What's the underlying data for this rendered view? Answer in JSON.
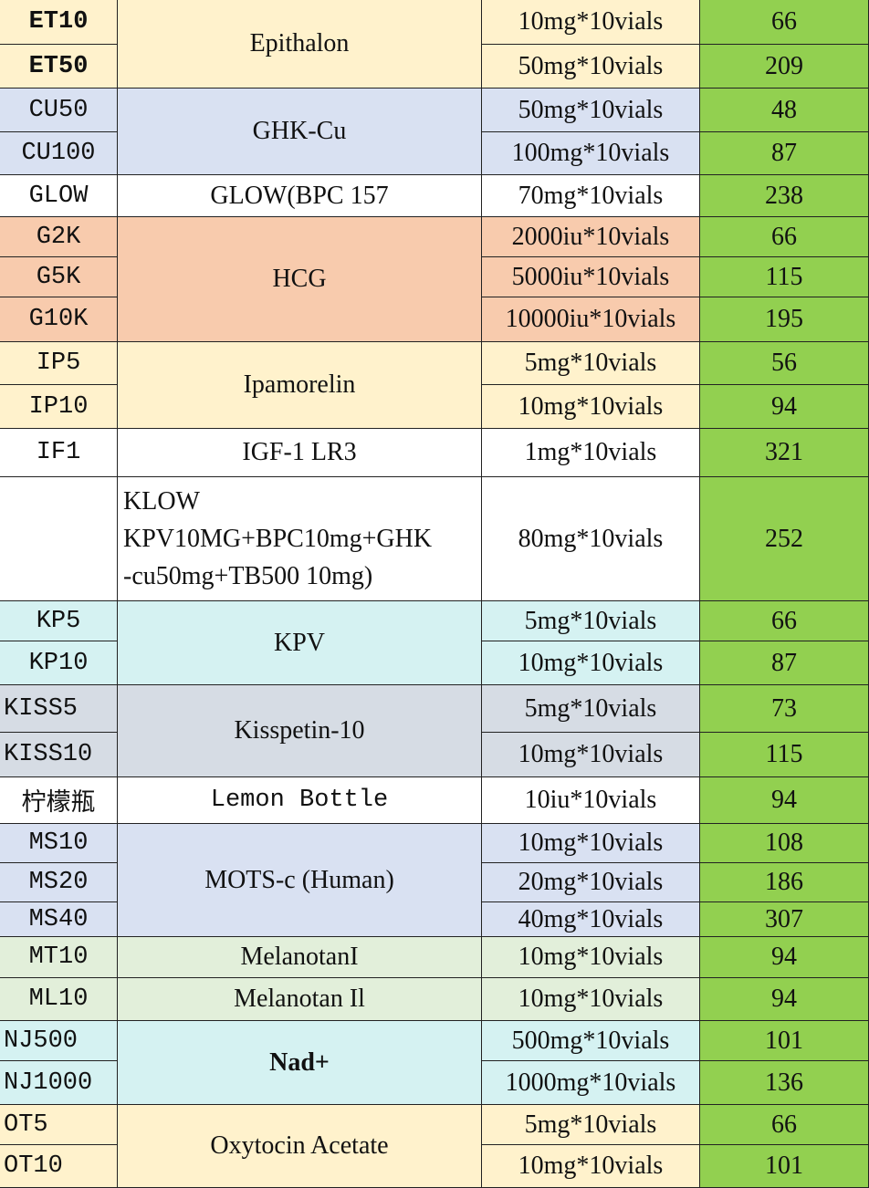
{
  "table": {
    "groups": [
      {
        "name": "Epithalon",
        "color": "#fff2cc",
        "rows": [
          {
            "code": "ET10",
            "spec": "10mg*10vials",
            "price": 66
          },
          {
            "code": "ET50",
            "spec": "50mg*10vials",
            "price": 209
          }
        ]
      },
      {
        "name": "GHK-Cu",
        "color": "#d9e1f2",
        "rows": [
          {
            "code": "CU50",
            "spec": "50mg*10vials",
            "price": 48
          },
          {
            "code": "CU100",
            "spec": "100mg*10vials",
            "price": 87
          }
        ]
      },
      {
        "name": "GLOW(BPC 157",
        "color": "#ffffff",
        "rows": [
          {
            "code": "GLOW",
            "spec": "70mg*10vials",
            "price": 238
          }
        ]
      },
      {
        "name": "HCG",
        "color": "#f8cbad",
        "rows": [
          {
            "code": "G2K",
            "spec": "2000iu*10vials",
            "price": 66
          },
          {
            "code": "G5K",
            "spec": "5000iu*10vials",
            "price": 115
          },
          {
            "code": "G10K",
            "spec": "10000iu*10vials",
            "price": 195
          }
        ]
      },
      {
        "name": "Ipamorelin",
        "color": "#fff2cc",
        "rows": [
          {
            "code": "IP5",
            "spec": "5mg*10vials",
            "price": 56
          },
          {
            "code": "IP10",
            "spec": "10mg*10vials",
            "price": 94
          }
        ]
      },
      {
        "name": "IGF-1 LR3",
        "color": "#ffffff",
        "rows": [
          {
            "code": "IF1",
            "spec": "1mg*10vials",
            "price": 321
          }
        ]
      },
      {
        "name_lines": [
          "KLOW",
          "KPV10MG+BPC10mg+GHK",
          "-cu50mg+TB500 10mg)"
        ],
        "color": "#ffffff",
        "rows": [
          {
            "spec": "80mg*10vials",
            "price": 252
          }
        ]
      },
      {
        "name": "KPV",
        "color": "#d5f2f2",
        "rows": [
          {
            "code": "KP5",
            "spec": "5mg*10vials",
            "price": 66
          },
          {
            "code": "KP10",
            "spec": "10mg*10vials",
            "price": 87
          }
        ]
      },
      {
        "name": "Kisspetin-10",
        "color": "#d6dce4",
        "rows": [
          {
            "code": "KISS5",
            "spec": "5mg*10vials",
            "price": 73
          },
          {
            "code": "KISS10",
            "spec": "10mg*10vials",
            "price": 115
          }
        ]
      },
      {
        "name": "Lemon Bottle",
        "color": "#ffffff",
        "rows": [
          {
            "code": "柠檬瓶",
            "spec": "10iu*10vials",
            "price": 94
          }
        ]
      },
      {
        "name": "MOTS-c (Human)",
        "color": "#d9e1f2",
        "rows": [
          {
            "code": "MS10",
            "spec": "10mg*10vials",
            "price": 108
          },
          {
            "code": "MS20",
            "spec": "20mg*10vials",
            "price": 186
          },
          {
            "code": "MS40",
            "spec": "40mg*10vials",
            "price": 307
          }
        ]
      },
      {
        "name": "MelanotanI",
        "color": "#e2efda",
        "rows": [
          {
            "code": "MT10",
            "spec": "10mg*10vials",
            "price": 94
          }
        ]
      },
      {
        "name": "Melanotan Il",
        "color": "#e2efda",
        "rows": [
          {
            "code": "ML10",
            "spec": "10mg*10vials",
            "price": 94
          }
        ]
      },
      {
        "name": "Nad+",
        "color": "#d5f2f2",
        "rows": [
          {
            "code": "NJ500",
            "spec": "500mg*10vials",
            "price": 101
          },
          {
            "code": "NJ1000",
            "spec": "1000mg*10vials",
            "price": 136
          }
        ]
      },
      {
        "name": "Oxytocin Acetate",
        "color": "#fff2cc",
        "rows": [
          {
            "code": "OT5",
            "spec": "5mg*10vials",
            "price": 66
          },
          {
            "code": "OT10",
            "spec": "10mg*10vials",
            "price": 101
          }
        ]
      }
    ],
    "price_color": "#92d050"
  }
}
